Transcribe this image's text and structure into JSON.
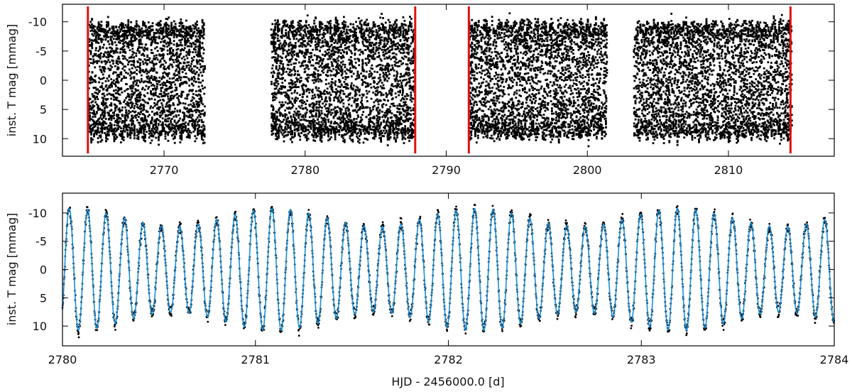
{
  "chart_data": [
    {
      "type": "scatter",
      "panel": "top",
      "ylabel": "inst. T mag [mmag]",
      "xlabel": "",
      "xlim": [
        2762.8,
        2817.5
      ],
      "ylim": [
        13.0,
        -13.0
      ],
      "y_inverted": true,
      "xticks": [
        2770,
        2780,
        2790,
        2800,
        2810
      ],
      "xtick_labels": [
        "2770",
        "2780",
        "2790",
        "2800",
        "2810"
      ],
      "yticks": [
        -10,
        -5,
        0,
        5,
        10
      ],
      "ytick_labels": [
        "-10",
        "-5",
        "0",
        "5",
        "10"
      ],
      "grid": false,
      "series": [
        {
          "kind": "points",
          "color": "#000000",
          "segments": [
            [
              2764.6,
              2772.9
            ],
            [
              2777.6,
              2787.8
            ],
            [
              2791.6,
              2801.4
            ],
            [
              2803.3,
              2814.5
            ]
          ],
          "amplitude_range_mmag": [
            -11.8,
            11.5
          ]
        }
      ],
      "vlines": {
        "color": "#e01010",
        "x": [
          2764.6,
          2787.8,
          2791.6,
          2814.4
        ]
      }
    },
    {
      "type": "line",
      "panel": "bottom",
      "ylabel": "inst. T mag [mmag]",
      "xlabel": "HJD - 2456000.0 [d]",
      "xlim": [
        2780.0,
        2784.0
      ],
      "ylim": [
        13.5,
        -13.5
      ],
      "y_inverted": true,
      "xticks": [
        2780,
        2781,
        2782,
        2783,
        2784
      ],
      "xtick_labels": [
        "2780",
        "2781",
        "2782",
        "2783",
        "2784"
      ],
      "yticks": [
        -10,
        -5,
        0,
        5,
        10
      ],
      "ytick_labels": [
        "-10",
        "-5",
        "0",
        "5",
        "10"
      ],
      "grid": false,
      "series": [
        {
          "kind": "fit",
          "color": "#1a8fd6",
          "period_days": 0.0955,
          "phase_zero_x": 2780.035,
          "amplitude_max": 10.8,
          "amplitude_min": 7.6,
          "beat_period_days": 1.05,
          "beat_phase_x": 2780.05
        },
        {
          "kind": "points",
          "color": "#000000",
          "cadence_days": 0.00139
        }
      ]
    }
  ]
}
